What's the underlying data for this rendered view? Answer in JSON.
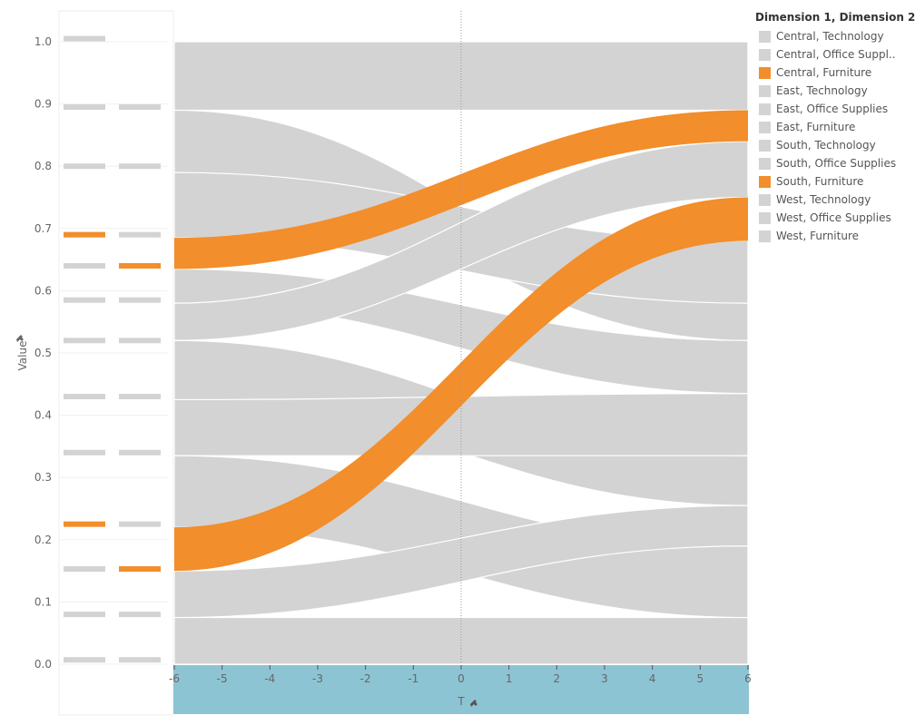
{
  "colors": {
    "grey": "#d3d3d3",
    "highlight": "#f28e2b",
    "t_axis_band": "#8dc4d3"
  },
  "legend": {
    "title": "Dimension 1, Dimension 2",
    "items": [
      {
        "label": "Central, Technology",
        "highlighted": false
      },
      {
        "label": "Central, Office Suppl..",
        "highlighted": false
      },
      {
        "label": "Central, Furniture",
        "highlighted": true
      },
      {
        "label": "East, Technology",
        "highlighted": false
      },
      {
        "label": "East, Office Supplies",
        "highlighted": false
      },
      {
        "label": "East, Furniture",
        "highlighted": false
      },
      {
        "label": "South, Technology",
        "highlighted": false
      },
      {
        "label": "South, Office Supplies",
        "highlighted": false
      },
      {
        "label": "South, Furniture",
        "highlighted": true
      },
      {
        "label": "West, Technology",
        "highlighted": false
      },
      {
        "label": "West, Office Supplies",
        "highlighted": false
      },
      {
        "label": "West, Furniture",
        "highlighted": false
      }
    ]
  },
  "chart_data": {
    "type": "area",
    "subtype": "sankey",
    "ylabel": "Value",
    "xlabel": "T",
    "ylim": [
      0,
      1
    ],
    "xlim": [
      -6,
      6
    ],
    "yticks": [
      "0.0",
      "0.1",
      "0.2",
      "0.3",
      "0.4",
      "0.5",
      "0.6",
      "0.7",
      "0.8",
      "0.9",
      "1.0"
    ],
    "xticks": [
      "-6",
      "-5",
      "-4",
      "-3",
      "-2",
      "-1",
      "0",
      "1",
      "2",
      "3",
      "4",
      "5",
      "6"
    ],
    "grid": true,
    "legend_position": "right",
    "bands": [
      {
        "y0_left": 0.89,
        "y1_left": 1.0,
        "y0_right": 0.89,
        "y1_right": 1.0,
        "highlighted": false
      },
      {
        "y0_left": 0.79,
        "y1_left": 0.89,
        "y0_right": 0.52,
        "y1_right": 0.58,
        "highlighted": false
      },
      {
        "y0_left": 0.685,
        "y1_left": 0.79,
        "y0_right": 0.58,
        "y1_right": 0.68,
        "highlighted": false
      },
      {
        "y0_left": 0.635,
        "y1_left": 0.685,
        "y0_right": 0.84,
        "y1_right": 0.89,
        "highlighted": true
      },
      {
        "y0_left": 0.58,
        "y1_left": 0.635,
        "y0_right": 0.435,
        "y1_right": 0.52,
        "highlighted": false
      },
      {
        "y0_left": 0.52,
        "y1_left": 0.58,
        "y0_right": 0.75,
        "y1_right": 0.84,
        "highlighted": false
      },
      {
        "y0_left": 0.425,
        "y1_left": 0.52,
        "y0_right": 0.255,
        "y1_right": 0.335,
        "highlighted": false
      },
      {
        "y0_left": 0.335,
        "y1_left": 0.425,
        "y0_right": 0.335,
        "y1_right": 0.435,
        "highlighted": false
      },
      {
        "y0_left": 0.22,
        "y1_left": 0.335,
        "y0_right": 0.075,
        "y1_right": 0.19,
        "highlighted": false
      },
      {
        "y0_left": 0.15,
        "y1_left": 0.22,
        "y0_right": 0.68,
        "y1_right": 0.75,
        "highlighted": true
      },
      {
        "y0_left": 0.075,
        "y1_left": 0.15,
        "y0_right": 0.19,
        "y1_right": 0.255,
        "highlighted": false
      },
      {
        "y0_left": 0.0,
        "y1_left": 0.075,
        "y0_right": 0.0,
        "y1_right": 0.075,
        "highlighted": false
      }
    ],
    "markers": {
      "column1": [
        {
          "y": 1.005,
          "highlighted": false
        },
        {
          "y": 0.895,
          "highlighted": false
        },
        {
          "y": 0.8,
          "highlighted": false
        },
        {
          "y": 0.69,
          "highlighted": true
        },
        {
          "y": 0.64,
          "highlighted": false
        },
        {
          "y": 0.585,
          "highlighted": false
        },
        {
          "y": 0.52,
          "highlighted": false
        },
        {
          "y": 0.43,
          "highlighted": false
        },
        {
          "y": 0.34,
          "highlighted": false
        },
        {
          "y": 0.225,
          "highlighted": true
        },
        {
          "y": 0.153,
          "highlighted": false
        },
        {
          "y": 0.08,
          "highlighted": false
        },
        {
          "y": 0.007,
          "highlighted": false
        }
      ],
      "column2": [
        {
          "y": 0.895,
          "highlighted": false
        },
        {
          "y": 0.8,
          "highlighted": false
        },
        {
          "y": 0.69,
          "highlighted": false
        },
        {
          "y": 0.64,
          "highlighted": true
        },
        {
          "y": 0.585,
          "highlighted": false
        },
        {
          "y": 0.52,
          "highlighted": false
        },
        {
          "y": 0.43,
          "highlighted": false
        },
        {
          "y": 0.34,
          "highlighted": false
        },
        {
          "y": 0.225,
          "highlighted": false
        },
        {
          "y": 0.153,
          "highlighted": true
        },
        {
          "y": 0.08,
          "highlighted": false
        },
        {
          "y": 0.007,
          "highlighted": false
        }
      ]
    }
  }
}
